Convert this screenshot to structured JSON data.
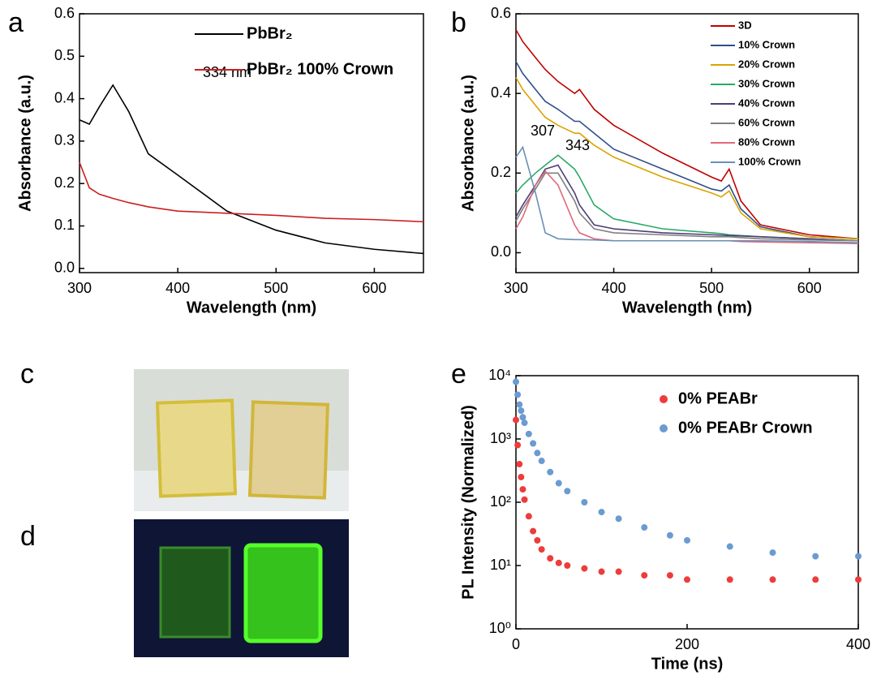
{
  "chart_data": [
    {
      "type": "line",
      "label": "a",
      "xlabel": "Wavelength (nm)",
      "ylabel": "Absorbance (a.u.)",
      "annotations": [
        "334 nm"
      ],
      "x": [
        300,
        310,
        320,
        334,
        350,
        370,
        400,
        450,
        500,
        550,
        600,
        650
      ],
      "series": [
        {
          "name": "PbBr₂",
          "color": "#000000",
          "values": [
            0.35,
            0.34,
            0.38,
            0.432,
            0.37,
            0.27,
            0.22,
            0.135,
            0.09,
            0.06,
            0.045,
            0.035
          ]
        },
        {
          "name": "PbBr₂ 100% Crown",
          "color": "#cc1f1f",
          "values": [
            0.25,
            0.19,
            0.175,
            0.165,
            0.155,
            0.145,
            0.135,
            0.13,
            0.125,
            0.118,
            0.115,
            0.11
          ]
        }
      ],
      "xlim": [
        300,
        650
      ],
      "xticks": [
        300,
        400,
        500,
        600
      ],
      "ylim": [
        -0.01,
        0.6
      ],
      "yticks": [
        {
          "value": 0,
          "label": "0.0"
        },
        0.1,
        0.2,
        0.3,
        0.4,
        0.5,
        0.6
      ]
    },
    {
      "type": "line",
      "label": "b",
      "xlabel": "Wavelength (nm)",
      "ylabel": "Absorbance (a.u.)",
      "annotations": [
        "307",
        "343"
      ],
      "x": [
        300,
        307,
        320,
        330,
        343,
        360,
        365,
        380,
        400,
        450,
        500,
        510,
        518,
        530,
        550,
        600,
        650
      ],
      "series": [
        {
          "name": "3D",
          "color": "#c00000",
          "values": [
            0.56,
            0.53,
            0.49,
            0.46,
            0.43,
            0.4,
            0.41,
            0.36,
            0.32,
            0.25,
            0.19,
            0.18,
            0.21,
            0.13,
            0.07,
            0.045,
            0.035
          ]
        },
        {
          "name": "10% Crown",
          "color": "#2e4f8a",
          "values": [
            0.48,
            0.45,
            0.41,
            0.38,
            0.36,
            0.33,
            0.33,
            0.3,
            0.26,
            0.21,
            0.16,
            0.155,
            0.17,
            0.11,
            0.065,
            0.04,
            0.035
          ]
        },
        {
          "name": "20% Crown",
          "color": "#d9a400",
          "values": [
            0.44,
            0.41,
            0.37,
            0.34,
            0.32,
            0.3,
            0.3,
            0.27,
            0.24,
            0.19,
            0.15,
            0.14,
            0.155,
            0.1,
            0.06,
            0.04,
            0.035
          ]
        },
        {
          "name": "30% Crown",
          "color": "#2aa866",
          "values": [
            0.15,
            0.17,
            0.2,
            0.22,
            0.245,
            0.21,
            0.19,
            0.12,
            0.085,
            0.06,
            0.05,
            0.048,
            0.045,
            0.043,
            0.04,
            0.035,
            0.03
          ]
        },
        {
          "name": "40% Crown",
          "color": "#4e3d7a",
          "values": [
            0.09,
            0.12,
            0.17,
            0.21,
            0.22,
            0.15,
            0.12,
            0.07,
            0.06,
            0.05,
            0.045,
            0.044,
            0.043,
            0.042,
            0.04,
            0.035,
            0.03
          ]
        },
        {
          "name": "60% Crown",
          "color": "#808080",
          "values": [
            0.08,
            0.11,
            0.16,
            0.2,
            0.2,
            0.13,
            0.1,
            0.06,
            0.05,
            0.045,
            0.04,
            0.04,
            0.04,
            0.038,
            0.035,
            0.032,
            0.03
          ]
        },
        {
          "name": "80% Crown",
          "color": "#e06a7a",
          "values": [
            0.06,
            0.09,
            0.17,
            0.205,
            0.17,
            0.07,
            0.05,
            0.035,
            0.03,
            0.03,
            0.03,
            0.03,
            0.03,
            0.028,
            0.027,
            0.025,
            0.023
          ]
        },
        {
          "name": "100% Crown",
          "color": "#6a8fb5",
          "values": [
            0.24,
            0.265,
            0.15,
            0.05,
            0.035,
            0.033,
            0.033,
            0.032,
            0.03,
            0.03,
            0.03,
            0.03,
            0.03,
            0.03,
            0.03,
            0.028,
            0.025
          ]
        }
      ],
      "xlim": [
        300,
        650
      ],
      "xticks": [
        300,
        400,
        500,
        600
      ],
      "ylim": [
        -0.05,
        0.6
      ],
      "yticks": [
        {
          "value": 0,
          "label": "0.0"
        },
        0.2,
        0.4,
        0.6
      ]
    },
    {
      "type": "scatter",
      "label": "e",
      "xlabel": "Time (ns)",
      "ylabel": "PL Intensity (Normalized)",
      "ylog": true,
      "x": [
        0,
        2,
        4,
        6,
        8,
        10,
        15,
        20,
        25,
        30,
        40,
        50,
        60,
        80,
        100,
        120,
        150,
        180,
        200,
        250,
        300,
        350,
        400
      ],
      "series": [
        {
          "name": "0% PEABr",
          "color": "#ee3b3b",
          "values": [
            2000,
            800,
            400,
            250,
            160,
            110,
            60,
            35,
            25,
            18,
            13,
            11,
            10,
            9,
            8,
            8,
            7,
            7,
            6,
            6,
            6,
            6,
            6
          ]
        },
        {
          "name": "0% PEABr Crown",
          "color": "#6a9bd1",
          "values": [
            8000,
            5000,
            3500,
            2800,
            2200,
            1800,
            1200,
            850,
            600,
            450,
            300,
            200,
            150,
            100,
            70,
            55,
            40,
            30,
            25,
            20,
            16,
            14,
            14
          ]
        }
      ],
      "xlim": [
        0,
        400
      ],
      "xticks": [
        0,
        200,
        400
      ],
      "ylim": [
        1,
        10000
      ],
      "yticks": [
        {
          "value": 1,
          "label": "10⁰"
        },
        {
          "value": 10,
          "label": "10¹"
        },
        {
          "value": 100,
          "label": "10²"
        },
        {
          "value": 1000,
          "label": "10³"
        },
        {
          "value": 10000,
          "label": "10⁴"
        }
      ]
    }
  ],
  "photo_labels": [
    "c",
    "d"
  ]
}
